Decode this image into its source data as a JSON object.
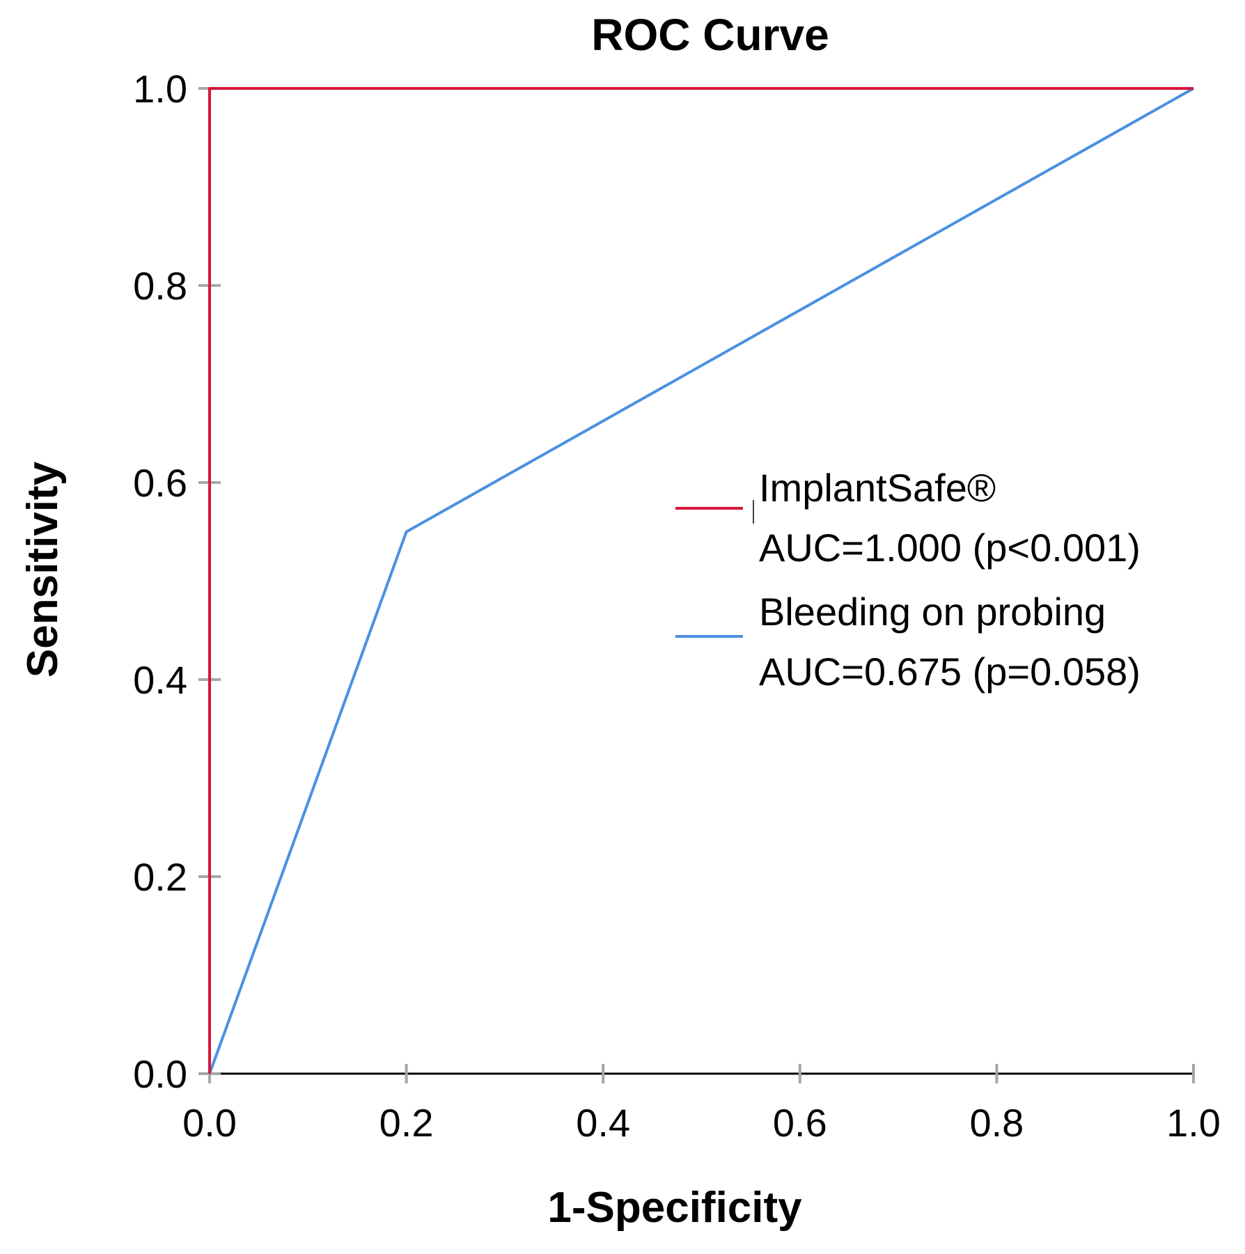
{
  "chart_data": {
    "type": "line",
    "title": "ROC Curve",
    "xlabel": "1-Specificity",
    "ylabel": "Sensitivity",
    "xlim": [
      0,
      1
    ],
    "ylim": [
      0,
      1
    ],
    "grid": false,
    "legend_position": "right",
    "x_ticks": [
      {
        "value": 0.0,
        "label": "0.0"
      },
      {
        "value": 0.2,
        "label": "0.2"
      },
      {
        "value": 0.4,
        "label": "0.4"
      },
      {
        "value": 0.6,
        "label": "0.6"
      },
      {
        "value": 0.8,
        "label": "0.8"
      },
      {
        "value": 1.0,
        "label": "1.0"
      }
    ],
    "y_ticks": [
      {
        "value": 0.0,
        "label": "0.0"
      },
      {
        "value": 0.2,
        "label": "0.2"
      },
      {
        "value": 0.4,
        "label": "0.4"
      },
      {
        "value": 0.6,
        "label": "0.6"
      },
      {
        "value": 0.8,
        "label": "0.8"
      },
      {
        "value": 1.0,
        "label": "1.0"
      }
    ],
    "series": [
      {
        "name": "ImplantSafe®",
        "auc_text": "AUC=1.000 (p<0.001)",
        "color": "#d6163b",
        "points": [
          [
            0.0,
            0.0
          ],
          [
            0.0,
            1.0
          ],
          [
            1.0,
            1.0
          ]
        ]
      },
      {
        "name": "Bleeding on probing",
        "auc_text": "AUC=0.675 (p=0.058)",
        "color": "#4a90e2",
        "points": [
          [
            0.0,
            0.0
          ],
          [
            0.2,
            0.55
          ],
          [
            1.0,
            1.0
          ]
        ]
      }
    ],
    "colors": {
      "axis": "#000000",
      "tick": "#a6a6a6",
      "left_axis": "#5a0a0a"
    }
  }
}
